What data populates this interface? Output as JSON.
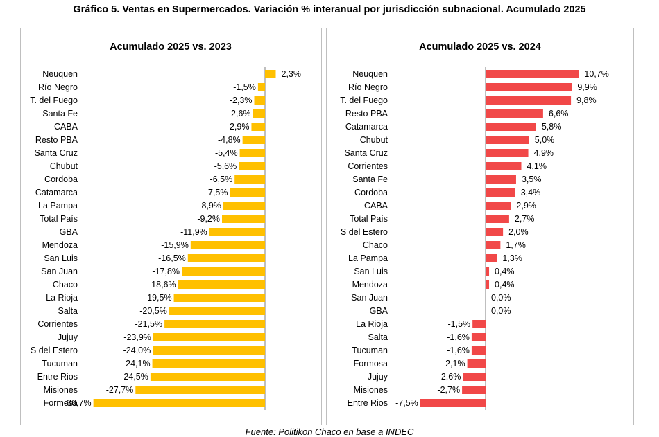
{
  "title": "Gráfico 5. Ventas en Supermercados. Variación % interanual por jurisdicción subnacional. Acumulado 2025",
  "source": "Fuente: Politikon Chaco en base a INDEC",
  "colors": {
    "left_bars": "#FFC000",
    "right_bars": "#F14848",
    "axis": "#7f7f7f"
  },
  "chart_data": [
    {
      "type": "bar",
      "orientation": "horizontal",
      "title": "Acumulado 2025 vs. 2023",
      "unit": "%",
      "categories": [
        "Neuquen",
        "Río Negro",
        "T. del Fuego",
        "Santa Fe",
        "CABA",
        "Resto PBA",
        "Santa Cruz",
        "Chubut",
        "Cordoba",
        "Catamarca",
        "La Pampa",
        "Total País",
        "GBA",
        "Mendoza",
        "San Luis",
        "San Juan",
        "Chaco",
        "La Rioja",
        "Salta",
        "Corrientes",
        "Jujuy",
        "S del Estero",
        "Tucuman",
        "Entre Rios",
        "Misiones",
        "Formosa"
      ],
      "values": [
        2.3,
        -1.5,
        -2.3,
        -2.6,
        -2.9,
        -4.8,
        -5.4,
        -5.6,
        -6.5,
        -7.5,
        -8.9,
        -9.2,
        -11.9,
        -15.9,
        -16.5,
        -17.8,
        -18.6,
        -19.5,
        -20.5,
        -21.5,
        -23.9,
        -24.0,
        -24.1,
        -24.5,
        -27.7,
        -36.7
      ],
      "labels": [
        "2,3%",
        "-1,5%",
        "-2,3%",
        "-2,6%",
        "-2,9%",
        "-4,8%",
        "-5,4%",
        "-5,6%",
        "-6,5%",
        "-7,5%",
        "-8,9%",
        "-9,2%",
        "-11,9%",
        "-15,9%",
        "-16,5%",
        "-17,8%",
        "-18,6%",
        "-19,5%",
        "-20,5%",
        "-21,5%",
        "-23,9%",
        "-24,0%",
        "-24,1%",
        "-24,5%",
        "-27,7%",
        "-36,7%"
      ]
    },
    {
      "type": "bar",
      "orientation": "horizontal",
      "title": "Acumulado 2025 vs. 2024",
      "unit": "%",
      "categories": [
        "Neuquen",
        "Río Negro",
        "T. del Fuego",
        "Resto PBA",
        "Catamarca",
        "Chubut",
        "Santa Cruz",
        "Corrientes",
        "Santa Fe",
        "Cordoba",
        "CABA",
        "Total País",
        "S del Estero",
        "Chaco",
        "La Pampa",
        "San Luis",
        "Mendoza",
        "San Juan",
        "GBA",
        "La Rioja",
        "Salta",
        "Tucuman",
        "Formosa",
        "Jujuy",
        "Misiones",
        "Entre Rios"
      ],
      "values": [
        10.7,
        9.9,
        9.8,
        6.6,
        5.8,
        5.0,
        4.9,
        4.1,
        3.5,
        3.4,
        2.9,
        2.7,
        2.0,
        1.7,
        1.3,
        0.4,
        0.4,
        0.0,
        0.0,
        -1.5,
        -1.6,
        -1.6,
        -2.1,
        -2.6,
        -2.7,
        -7.5
      ],
      "labels": [
        "10,7%",
        "9,9%",
        "9,8%",
        "6,6%",
        "5,8%",
        "5,0%",
        "4,9%",
        "4,1%",
        "3,5%",
        "3,4%",
        "2,9%",
        "2,7%",
        "2,0%",
        "1,7%",
        "1,3%",
        "0,4%",
        "0,4%",
        "0,0%",
        "0,0%",
        "-1,5%",
        "-1,6%",
        "-1,6%",
        "-2,1%",
        "-2,6%",
        "-2,7%",
        "-7,5%"
      ]
    }
  ]
}
